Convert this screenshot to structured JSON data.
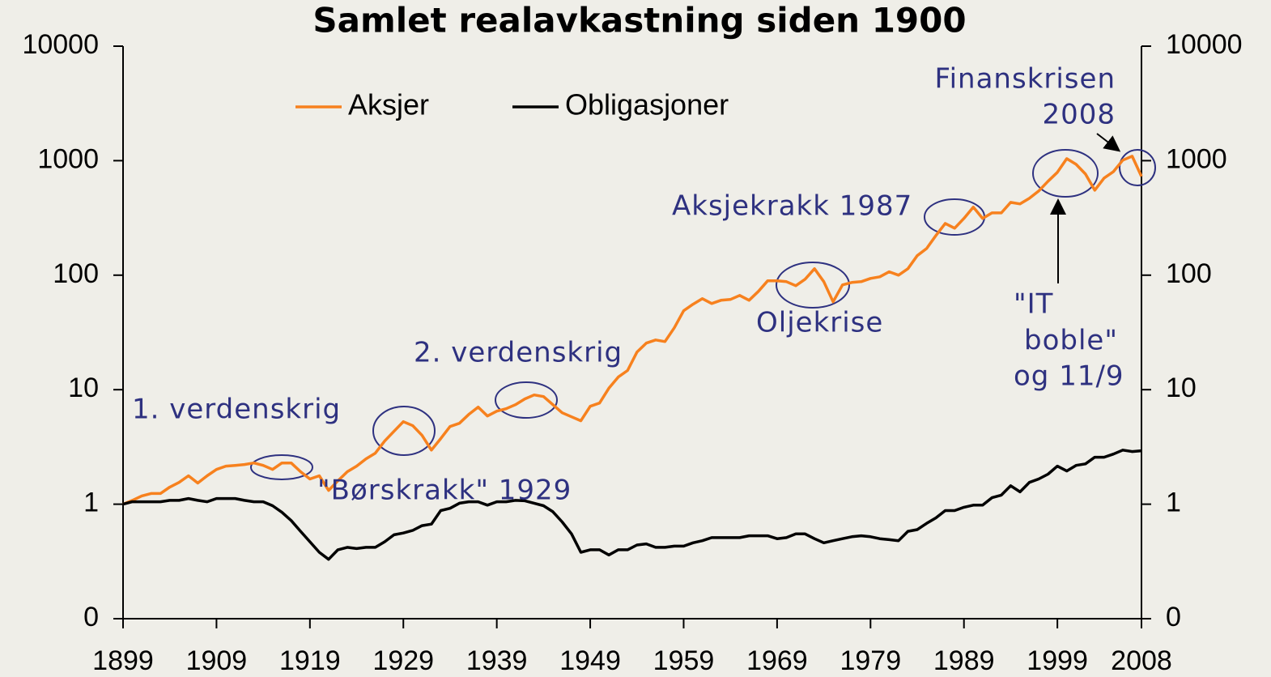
{
  "chart_data": {
    "type": "line",
    "title": "Samlet realavkastning siden 1900",
    "x": [
      1899,
      1900,
      1901,
      1902,
      1903,
      1904,
      1905,
      1906,
      1907,
      1908,
      1909,
      1910,
      1911,
      1912,
      1913,
      1914,
      1915,
      1916,
      1917,
      1918,
      1919,
      1920,
      1921,
      1922,
      1923,
      1924,
      1925,
      1926,
      1927,
      1928,
      1929,
      1930,
      1931,
      1932,
      1933,
      1934,
      1935,
      1936,
      1937,
      1938,
      1939,
      1940,
      1941,
      1942,
      1943,
      1944,
      1945,
      1946,
      1947,
      1948,
      1949,
      1950,
      1951,
      1952,
      1953,
      1954,
      1955,
      1956,
      1957,
      1958,
      1959,
      1960,
      1961,
      1962,
      1963,
      1964,
      1965,
      1966,
      1967,
      1968,
      1969,
      1970,
      1971,
      1972,
      1973,
      1974,
      1975,
      1976,
      1977,
      1978,
      1979,
      1980,
      1981,
      1982,
      1983,
      1984,
      1985,
      1986,
      1987,
      1988,
      1989,
      1990,
      1991,
      1992,
      1993,
      1994,
      1995,
      1996,
      1997,
      1998,
      1999,
      2000,
      2001,
      2002,
      2003,
      2004,
      2005,
      2006,
      2007,
      2008
    ],
    "series": [
      {
        "name": "Aksjer",
        "color": "#f7811e",
        "values": [
          1.0,
          1.08,
          1.18,
          1.24,
          1.24,
          1.41,
          1.55,
          1.77,
          1.53,
          1.77,
          2.01,
          2.15,
          2.18,
          2.22,
          2.29,
          2.18,
          2.01,
          2.29,
          2.29,
          1.92,
          1.66,
          1.77,
          1.32,
          1.6,
          1.92,
          2.15,
          2.49,
          2.79,
          3.56,
          4.33,
          5.26,
          4.85,
          3.99,
          2.97,
          3.74,
          4.77,
          5.09,
          6.08,
          7.05,
          5.89,
          6.5,
          6.82,
          7.4,
          8.3,
          9.0,
          8.71,
          7.4,
          6.29,
          5.8,
          5.35,
          7.16,
          7.64,
          10.3,
          12.9,
          14.7,
          21.3,
          25.5,
          27.2,
          26.3,
          34.7,
          48.9,
          55.7,
          62.4,
          56.6,
          60.4,
          61.4,
          66.6,
          60.4,
          72.2,
          89.3,
          89.3,
          87.8,
          80.9,
          92.2,
          114,
          87.8,
          58.5,
          82.2,
          86.3,
          87.8,
          93.7,
          96.8,
          107,
          100,
          114,
          148,
          171,
          222,
          283,
          257,
          313,
          393,
          313,
          350,
          350,
          432,
          419,
          469,
          543,
          661,
          791,
          1042,
          929,
          764,
          552,
          705,
          803,
          1009,
          1094,
          728
        ]
      },
      {
        "name": "Obligasjoner",
        "color": "#000000",
        "values": [
          1.0,
          1.05,
          1.05,
          1.05,
          1.05,
          1.08,
          1.08,
          1.12,
          1.08,
          1.05,
          1.12,
          1.12,
          1.12,
          1.08,
          1.05,
          1.05,
          0.97,
          0.85,
          0.72,
          0.58,
          0.47,
          0.38,
          0.33,
          0.4,
          0.42,
          0.41,
          0.42,
          0.42,
          0.47,
          0.54,
          0.56,
          0.59,
          0.65,
          0.67,
          0.88,
          0.92,
          1.02,
          1.05,
          1.05,
          0.98,
          1.05,
          1.05,
          1.08,
          1.07,
          1.02,
          0.97,
          0.86,
          0.7,
          0.55,
          0.38,
          0.4,
          0.4,
          0.36,
          0.4,
          0.4,
          0.44,
          0.45,
          0.42,
          0.42,
          0.43,
          0.43,
          0.46,
          0.48,
          0.51,
          0.51,
          0.51,
          0.51,
          0.53,
          0.53,
          0.53,
          0.5,
          0.51,
          0.55,
          0.55,
          0.5,
          0.46,
          0.48,
          0.5,
          0.52,
          0.53,
          0.52,
          0.5,
          0.49,
          0.48,
          0.58,
          0.6,
          0.68,
          0.76,
          0.88,
          0.88,
          0.94,
          0.98,
          0.98,
          1.14,
          1.2,
          1.45,
          1.28,
          1.55,
          1.66,
          1.83,
          2.15,
          1.95,
          2.18,
          2.25,
          2.57,
          2.57,
          2.74,
          2.97,
          2.88,
          2.93
        ]
      }
    ],
    "xlim": [
      1899,
      2008
    ],
    "xticks": [
      1899,
      1909,
      1919,
      1929,
      1939,
      1949,
      1959,
      1969,
      1979,
      1989,
      1999,
      2008
    ],
    "ylim": [
      0.1,
      10000
    ],
    "yticks": [
      {
        "value": 0.1,
        "label": "0"
      },
      1,
      10,
      100,
      1000,
      10000
    ],
    "y2lim": [
      0.1,
      10000
    ],
    "y2ticks": [
      {
        "value": 0.1,
        "label": "0"
      },
      1,
      10,
      100,
      1000,
      10000
    ],
    "log_scale": true,
    "grid": false,
    "annotations": [
      {
        "lines": [
          "1. verdenskrig"
        ]
      },
      {
        "lines": [
          "\"Børskrakk\" 1929"
        ]
      },
      {
        "lines": [
          "2. verdenskrig"
        ]
      },
      {
        "lines": [
          "Aksjekrakk 1987"
        ]
      },
      {
        "lines": [
          "Oljekrise"
        ]
      },
      {
        "lines": [
          "\"IT",
          "boble\"",
          "og 11/9"
        ]
      },
      {
        "lines": [
          "Finanskrisen",
          "2008"
        ]
      }
    ]
  }
}
